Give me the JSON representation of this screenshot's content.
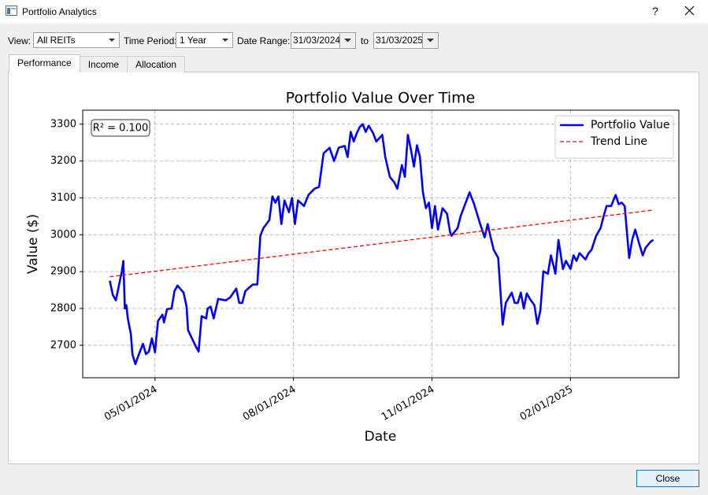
{
  "window": {
    "title": "Portfolio Analytics",
    "help": "?"
  },
  "toolbar": {
    "view_label": "View:",
    "view_value": "All REITs",
    "period_label": "Time Period:",
    "period_value": "1 Year",
    "range_label": "Date Range:",
    "range_start": "31/03/2024",
    "range_to": "to",
    "range_end": "31/03/2025"
  },
  "tabs": [
    "Performance",
    "Income",
    "Allocation"
  ],
  "active_tab": 0,
  "footer": {
    "close_button": "Close"
  },
  "chart_data": {
    "type": "line",
    "title": "Portfolio Value Over Time",
    "x_label": "Date",
    "y_label": "Value ($)",
    "annotation": "R² = 0.100",
    "xlim": [
      "2024-03-14",
      "2025-04-14"
    ],
    "xticks": [
      {
        "value": "2024-05-01",
        "label": "05/01/2024"
      },
      {
        "value": "2024-08-01",
        "label": "08/01/2024"
      },
      {
        "value": "2024-11-01",
        "label": "11/01/2024"
      },
      {
        "value": "2025-02-01",
        "label": "02/01/2025"
      }
    ],
    "ylim": [
      2612,
      3338
    ],
    "yticks": [
      2700,
      2800,
      2900,
      3000,
      3100,
      3200,
      3300
    ],
    "grid": true,
    "legend": "upper right",
    "series": [
      {
        "name": "Portfolio Value",
        "color": "#0000ff",
        "style": "solid",
        "x": [
          "2024-04-01",
          "2024-04-03",
          "2024-04-05",
          "2024-04-09",
          "2024-04-10",
          "2024-04-11",
          "2024-04-12",
          "2024-04-13",
          "2024-04-15",
          "2024-04-16",
          "2024-04-18",
          "2024-04-20",
          "2024-04-23",
          "2024-04-25",
          "2024-04-27",
          "2024-04-29",
          "2024-05-01",
          "2024-05-03",
          "2024-05-06",
          "2024-05-07",
          "2024-05-09",
          "2024-05-12",
          "2024-05-14",
          "2024-05-16",
          "2024-05-20",
          "2024-05-22",
          "2024-05-23",
          "2024-05-28",
          "2024-05-30",
          "2024-06-01",
          "2024-06-04",
          "2024-06-05",
          "2024-06-07",
          "2024-06-09",
          "2024-06-12",
          "2024-06-17",
          "2024-06-20",
          "2024-06-24",
          "2024-06-26",
          "2024-06-28",
          "2024-06-30",
          "2024-07-03",
          "2024-07-05",
          "2024-07-08",
          "2024-07-10",
          "2024-07-12",
          "2024-07-16",
          "2024-07-18",
          "2024-07-20",
          "2024-07-22",
          "2024-07-24",
          "2024-07-26",
          "2024-07-29",
          "2024-07-31",
          "2024-08-02",
          "2024-08-04",
          "2024-08-08",
          "2024-08-11",
          "2024-08-15",
          "2024-08-18",
          "2024-08-21",
          "2024-08-25",
          "2024-08-28",
          "2024-08-31",
          "2024-09-04",
          "2024-09-06",
          "2024-09-08",
          "2024-09-10",
          "2024-09-12",
          "2024-09-14",
          "2024-09-16",
          "2024-09-18",
          "2024-09-20",
          "2024-09-23",
          "2024-09-25",
          "2024-09-29",
          "2024-10-01",
          "2024-10-04",
          "2024-10-07",
          "2024-10-09",
          "2024-10-12",
          "2024-10-14",
          "2024-10-16",
          "2024-10-18",
          "2024-10-20",
          "2024-10-22",
          "2024-10-24",
          "2024-10-26",
          "2024-10-28",
          "2024-10-30",
          "2024-11-01",
          "2024-11-03",
          "2024-11-05",
          "2024-11-08",
          "2024-11-11",
          "2024-11-13",
          "2024-11-14",
          "2024-11-16",
          "2024-11-18",
          "2024-11-20",
          "2024-11-23",
          "2024-11-26",
          "2024-11-29",
          "2024-12-03",
          "2024-12-06",
          "2024-12-08",
          "2024-12-10",
          "2024-12-12",
          "2024-12-15",
          "2024-12-18",
          "2024-12-20",
          "2024-12-24",
          "2024-12-26",
          "2024-12-28",
          "2024-12-30",
          "2025-01-01",
          "2025-01-03",
          "2025-01-05",
          "2025-01-08",
          "2025-01-10",
          "2025-01-12",
          "2025-01-14",
          "2025-01-17",
          "2025-01-19",
          "2025-01-21",
          "2025-01-22",
          "2025-01-24",
          "2025-01-27",
          "2025-01-29",
          "2025-02-01",
          "2025-02-03",
          "2025-02-05",
          "2025-02-07",
          "2025-02-11",
          "2025-02-13",
          "2025-02-15",
          "2025-02-18",
          "2025-02-21",
          "2025-02-23",
          "2025-02-25",
          "2025-02-28",
          "2025-03-03",
          "2025-03-05",
          "2025-03-07",
          "2025-03-09",
          "2025-03-12",
          "2025-03-14",
          "2025-03-16",
          "2025-03-19",
          "2025-03-21",
          "2025-03-23",
          "2025-03-26",
          "2025-03-28"
        ],
        "values": [
          2875,
          2837,
          2822,
          2901,
          2929,
          2800,
          2809,
          2773,
          2730,
          2676,
          2649,
          2672,
          2704,
          2676,
          2683,
          2719,
          2681,
          2766,
          2783,
          2762,
          2798,
          2800,
          2847,
          2862,
          2843,
          2805,
          2741,
          2698,
          2683,
          2779,
          2773,
          2800,
          2805,
          2773,
          2826,
          2822,
          2830,
          2854,
          2815,
          2815,
          2847,
          2858,
          2865,
          2865,
          2997,
          3018,
          3040,
          3104,
          3087,
          3104,
          3029,
          3093,
          3061,
          3100,
          3029,
          3093,
          3078,
          3108,
          3125,
          3130,
          3221,
          3236,
          3200,
          3236,
          3241,
          3211,
          3279,
          3253,
          3275,
          3292,
          3300,
          3279,
          3296,
          3275,
          3253,
          3271,
          3211,
          3157,
          3142,
          3125,
          3189,
          3157,
          3271,
          3232,
          3185,
          3243,
          3211,
          3115,
          3072,
          3087,
          3018,
          3078,
          3014,
          3072,
          3057,
          3008,
          2997,
          3008,
          3018,
          3050,
          3083,
          3115,
          3083,
          3029,
          2993,
          3029,
          2993,
          2959,
          2937,
          2756,
          2815,
          2843,
          2815,
          2815,
          2843,
          2800,
          2841,
          2826,
          2809,
          2758,
          2794,
          2901,
          2894,
          2944,
          2912,
          2894,
          2986,
          2907,
          2929,
          2907,
          2944,
          2929,
          2950,
          2933,
          2950,
          2959,
          2997,
          3018,
          3050,
          3078,
          3078,
          3108,
          3083,
          3087,
          3078,
          2937,
          2986,
          3014,
          2971,
          2944,
          2965,
          2980,
          2986
        ]
      },
      {
        "name": "Trend Line",
        "color": "#ff0000",
        "style": "dashed",
        "x": [
          "2024-04-01",
          "2025-03-28"
        ],
        "values": [
          2886,
          3067
        ]
      }
    ]
  }
}
